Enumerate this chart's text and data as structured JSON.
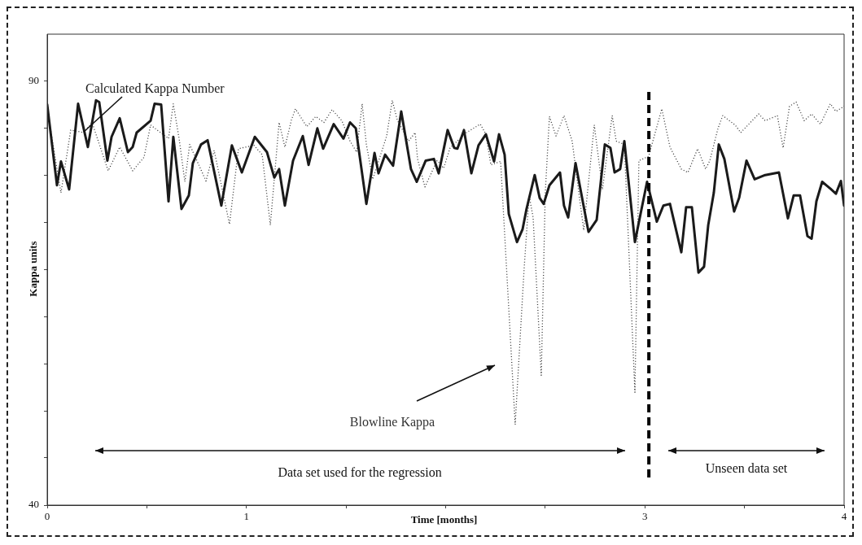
{
  "chart_data": {
    "type": "line",
    "xlabel": "Time [months]",
    "ylabel": "Kappa units",
    "xlim": [
      0,
      4
    ],
    "ylim": [
      40,
      95.5
    ],
    "xticks": [
      0,
      {
        "value": 0.5,
        "label": null
      },
      1,
      {
        "value": 1.5,
        "label": null
      },
      {
        "value": 2,
        "label": null
      },
      {
        "value": 2.5,
        "label": null
      },
      3,
      {
        "value": 3.5,
        "label": null
      },
      4
    ],
    "yticks": [
      40,
      {
        "value": 45.56,
        "label": null
      },
      {
        "value": 51.11,
        "label": null
      },
      {
        "value": 56.67,
        "label": null
      },
      {
        "value": 62.22,
        "label": null
      },
      {
        "value": 67.78,
        "label": null
      },
      {
        "value": 73.33,
        "label": null
      },
      {
        "value": 78.89,
        "label": null
      },
      {
        "value": 84.44,
        "label": null
      },
      90
    ],
    "grid": false,
    "legend": false,
    "marker": "none",
    "series": [
      {
        "name": "Calculated Kappa Number",
        "color": "#1a1a1a",
        "line_style": "solid",
        "x": [
          0,
          0.049,
          0.069,
          0.11,
          0.155,
          0.204,
          0.245,
          0.261,
          0.302,
          0.323,
          0.364,
          0.405,
          0.429,
          0.449,
          0.519,
          0.539,
          0.572,
          0.609,
          0.633,
          0.674,
          0.711,
          0.731,
          0.772,
          0.805,
          0.874,
          0.927,
          0.977,
          1.042,
          1.103,
          1.14,
          1.164,
          1.193,
          1.234,
          1.283,
          1.312,
          1.356,
          1.385,
          1.438,
          1.487,
          1.52,
          1.549,
          1.602,
          1.643,
          1.663,
          1.696,
          1.736,
          1.777,
          1.826,
          1.855,
          1.9,
          1.941,
          1.965,
          2.01,
          2.043,
          2.059,
          2.092,
          2.129,
          2.165,
          2.202,
          2.243,
          2.268,
          2.296,
          2.317,
          2.358,
          2.386,
          2.406,
          2.447,
          2.472,
          2.492,
          2.521,
          2.574,
          2.594,
          2.615,
          2.652,
          2.717,
          2.758,
          2.799,
          2.827,
          2.848,
          2.876,
          2.897,
          2.95,
          2.979,
          3.011,
          3.06,
          3.093,
          3.126,
          3.183,
          3.207,
          3.236,
          3.269,
          3.297,
          3.318,
          3.346,
          3.371,
          3.399,
          3.448,
          3.473,
          3.51,
          3.551,
          3.604,
          3.673,
          3.718,
          3.747,
          3.779,
          3.816,
          3.837,
          3.861,
          3.89,
          3.931,
          3.959,
          3.984,
          4
        ],
        "values": [
          87.2,
          77.7,
          80.5,
          77.2,
          87.3,
          82.2,
          87.7,
          87.5,
          80.6,
          83.4,
          85.6,
          81.6,
          82.2,
          83.9,
          85.3,
          87.3,
          87.2,
          75.8,
          83.4,
          74.9,
          76.5,
          80.3,
          82.5,
          83,
          75.3,
          82.4,
          79.2,
          83.4,
          81.6,
          78.6,
          79.6,
          75.3,
          80.6,
          83.5,
          80.1,
          84.4,
          82,
          84.9,
          83.2,
          85.1,
          84.4,
          75.5,
          81.5,
          79.1,
          81.3,
          80,
          86.4,
          79.6,
          78.1,
          80.6,
          80.8,
          79.1,
          84.2,
          82.1,
          82,
          84.2,
          79.1,
          82.4,
          83.7,
          80.5,
          83.7,
          81.3,
          74.3,
          71,
          72.5,
          74.9,
          78.9,
          76.2,
          75.5,
          77.7,
          79.2,
          75.3,
          73.9,
          80.3,
          72.2,
          73.6,
          82.5,
          82.1,
          79.2,
          79.6,
          82.9,
          71,
          74.4,
          78.1,
          73.4,
          75.3,
          75.5,
          69.8,
          75.1,
          75.1,
          67.4,
          68.1,
          73,
          76.8,
          82.5,
          80.8,
          74.6,
          76.2,
          80.6,
          78.4,
          78.9,
          79.2,
          73.8,
          76.5,
          76.5,
          71.7,
          71.4,
          75.8,
          78.1,
          77.3,
          76.7,
          78.2,
          75.3
        ]
      },
      {
        "name": "Blowline Kappa",
        "color": "#333333",
        "line_style": "dotted",
        "x": [
          0,
          0.069,
          0.118,
          0.184,
          0.225,
          0.306,
          0.364,
          0.429,
          0.486,
          0.519,
          0.552,
          0.609,
          0.633,
          0.662,
          0.691,
          0.715,
          0.797,
          0.838,
          0.915,
          0.96,
          1.038,
          1.079,
          1.12,
          1.164,
          1.193,
          1.226,
          1.246,
          1.303,
          1.348,
          1.389,
          1.43,
          1.479,
          1.52,
          1.553,
          1.581,
          1.602,
          1.634,
          1.704,
          1.732,
          1.757,
          1.814,
          1.847,
          1.859,
          1.896,
          1.957,
          1.99,
          2.022,
          2.104,
          2.174,
          2.202,
          2.227,
          2.276,
          2.349,
          2.394,
          2.419,
          2.439,
          2.48,
          2.5,
          2.521,
          2.554,
          2.594,
          2.635,
          2.693,
          2.746,
          2.787,
          2.836,
          2.856,
          2.897,
          2.95,
          2.97,
          3.019,
          3.085,
          3.126,
          3.183,
          3.216,
          3.265,
          3.305,
          3.326,
          3.367,
          3.391,
          3.453,
          3.481,
          3.53,
          3.571,
          3.604,
          3.665,
          3.694,
          3.726,
          3.759,
          3.8,
          3.837,
          3.881,
          3.931,
          3.959,
          4
        ],
        "values": [
          86.7,
          76.8,
          84.2,
          83.9,
          85.1,
          79.4,
          82.2,
          79.4,
          81,
          84.8,
          84.2,
          83.2,
          87.3,
          83.2,
          78.1,
          82.5,
          78.2,
          81.8,
          73.1,
          82,
          82.4,
          81.3,
          73,
          85.1,
          82.2,
          85.4,
          86.7,
          84.6,
          85.8,
          85.1,
          86.6,
          85.3,
          82.9,
          81.6,
          87.3,
          82.5,
          78.4,
          83.5,
          87.7,
          85.4,
          82.9,
          83.9,
          80.8,
          77.5,
          80.6,
          79.7,
          82.1,
          83.9,
          84.9,
          83.7,
          80.1,
          80.5,
          49.5,
          67.9,
          76.5,
          73.9,
          55.3,
          76.8,
          85.8,
          83.5,
          85.9,
          82.9,
          72.4,
          84.8,
          77.2,
          85.9,
          82.9,
          82.5,
          53.3,
          80.6,
          81.1,
          86.7,
          82.2,
          79.6,
          79.2,
          82,
          79.6,
          80.6,
          84.4,
          85.9,
          84.8,
          83.9,
          85.1,
          86.1,
          85.3,
          85.9,
          82.1,
          87,
          87.5,
          85.3,
          86.1,
          84.9,
          87.3,
          86.4,
          87
        ]
      }
    ],
    "ref_lines": [
      {
        "axis": "x",
        "value": 3.02,
        "color": "#000000",
        "line_style": "dashed"
      }
    ],
    "annotations": [
      "Data set used for the regression",
      "Unseen data set"
    ]
  }
}
